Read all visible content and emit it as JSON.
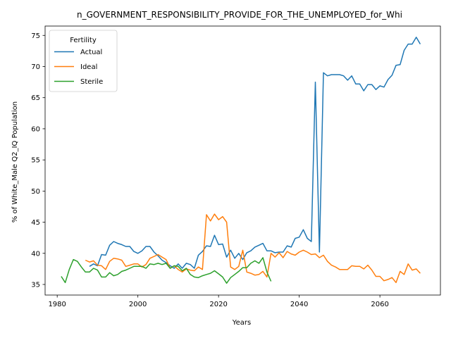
{
  "chart_data": {
    "type": "line",
    "title": "n_GOVERNMENT_RESPONSIBILITY_PROVIDE_FOR_THE_UNEMPLOYED_for_Whi",
    "xlabel": "Years",
    "ylabel": "% of White_Male Q2_IQ Population",
    "xlim": [
      1977,
      2075
    ],
    "ylim": [
      33.3,
      76.5
    ],
    "xticks": [
      1980,
      2000,
      2020,
      2040,
      2060
    ],
    "yticks": [
      35,
      40,
      45,
      50,
      55,
      60,
      65,
      70,
      75
    ],
    "grid": false,
    "legend": {
      "title": "Fertility",
      "placement": "upper-left"
    },
    "series": [
      {
        "name": "Actual",
        "color": "#1f77b4",
        "points": [
          [
            1988,
            37.9
          ],
          [
            1989,
            38.3
          ],
          [
            1990,
            38.0
          ],
          [
            1991,
            39.8
          ],
          [
            1992,
            39.7
          ],
          [
            1993,
            41.3
          ],
          [
            1994,
            41.9
          ],
          [
            1995,
            41.6
          ],
          [
            1996,
            41.4
          ],
          [
            1997,
            41.1
          ],
          [
            1998,
            41.1
          ],
          [
            1999,
            40.3
          ],
          [
            2000,
            40.0
          ],
          [
            2001,
            40.4
          ],
          [
            2002,
            41.1
          ],
          [
            2003,
            41.1
          ],
          [
            2004,
            40.2
          ],
          [
            2005,
            39.6
          ],
          [
            2006,
            38.9
          ],
          [
            2007,
            38.5
          ],
          [
            2008,
            38.0
          ],
          [
            2009,
            37.6
          ],
          [
            2010,
            38.3
          ],
          [
            2011,
            37.6
          ],
          [
            2012,
            38.4
          ],
          [
            2013,
            38.2
          ],
          [
            2014,
            37.6
          ],
          [
            2015,
            39.7
          ],
          [
            2016,
            40.3
          ],
          [
            2017,
            41.2
          ],
          [
            2018,
            41.1
          ],
          [
            2019,
            42.9
          ],
          [
            2020,
            41.4
          ],
          [
            2021,
            41.5
          ],
          [
            2022,
            39.4
          ],
          [
            2023,
            40.5
          ],
          [
            2024,
            39.2
          ],
          [
            2025,
            40.0
          ],
          [
            2026,
            39.0
          ],
          [
            2027,
            40.1
          ],
          [
            2028,
            40.4
          ],
          [
            2029,
            41.0
          ],
          [
            2030,
            41.3
          ],
          [
            2031,
            41.6
          ],
          [
            2032,
            40.4
          ],
          [
            2033,
            40.4
          ],
          [
            2034,
            40.1
          ],
          [
            2035,
            40.2
          ],
          [
            2036,
            40.2
          ],
          [
            2037,
            41.2
          ],
          [
            2038,
            41.0
          ],
          [
            2039,
            42.4
          ],
          [
            2040,
            42.6
          ],
          [
            2041,
            43.8
          ],
          [
            2042,
            42.4
          ],
          [
            2043,
            41.9
          ],
          [
            2044,
            67.5
          ],
          [
            2045,
            40.2
          ],
          [
            2046,
            69.0
          ],
          [
            2047,
            68.5
          ],
          [
            2048,
            68.7
          ],
          [
            2049,
            68.7
          ],
          [
            2050,
            68.7
          ],
          [
            2051,
            68.5
          ],
          [
            2052,
            67.8
          ],
          [
            2053,
            68.5
          ],
          [
            2054,
            67.2
          ],
          [
            2055,
            67.2
          ],
          [
            2056,
            66.1
          ],
          [
            2057,
            67.1
          ],
          [
            2058,
            67.1
          ],
          [
            2059,
            66.3
          ],
          [
            2060,
            66.9
          ],
          [
            2061,
            66.7
          ],
          [
            2062,
            67.9
          ],
          [
            2063,
            68.6
          ],
          [
            2064,
            70.2
          ],
          [
            2065,
            70.3
          ],
          [
            2066,
            72.6
          ],
          [
            2067,
            73.6
          ],
          [
            2068,
            73.6
          ],
          [
            2069,
            74.7
          ],
          [
            2070,
            73.6
          ]
        ]
      },
      {
        "name": "Ideal",
        "color": "#ff7f0e",
        "points": [
          [
            1987,
            38.9
          ],
          [
            1988,
            38.6
          ],
          [
            1989,
            38.8
          ],
          [
            1990,
            38.1
          ],
          [
            1991,
            38.0
          ],
          [
            1992,
            37.4
          ],
          [
            1993,
            38.7
          ],
          [
            1994,
            39.2
          ],
          [
            1995,
            39.1
          ],
          [
            1996,
            38.9
          ],
          [
            1997,
            37.9
          ],
          [
            1998,
            38.1
          ],
          [
            1999,
            38.3
          ],
          [
            2000,
            38.3
          ],
          [
            2001,
            37.8
          ],
          [
            2002,
            38.2
          ],
          [
            2003,
            39.2
          ],
          [
            2004,
            39.5
          ],
          [
            2005,
            39.8
          ],
          [
            2006,
            39.4
          ],
          [
            2007,
            39.0
          ],
          [
            2008,
            37.6
          ],
          [
            2009,
            38.0
          ],
          [
            2010,
            37.4
          ],
          [
            2011,
            37.0
          ],
          [
            2012,
            37.5
          ],
          [
            2013,
            37.3
          ],
          [
            2014,
            37.2
          ],
          [
            2015,
            37.8
          ],
          [
            2016,
            37.4
          ],
          [
            2017,
            46.2
          ],
          [
            2018,
            45.2
          ],
          [
            2019,
            46.3
          ],
          [
            2020,
            45.4
          ],
          [
            2021,
            45.9
          ],
          [
            2022,
            45.0
          ],
          [
            2023,
            37.8
          ],
          [
            2024,
            37.4
          ],
          [
            2025,
            37.9
          ],
          [
            2026,
            40.5
          ],
          [
            2027,
            37.0
          ],
          [
            2028,
            36.8
          ],
          [
            2029,
            36.5
          ],
          [
            2030,
            36.6
          ],
          [
            2031,
            37.1
          ],
          [
            2032,
            36.2
          ],
          [
            2033,
            40.0
          ],
          [
            2034,
            39.4
          ],
          [
            2035,
            40.1
          ],
          [
            2036,
            39.3
          ],
          [
            2037,
            40.3
          ],
          [
            2038,
            39.9
          ],
          [
            2039,
            39.7
          ],
          [
            2040,
            40.2
          ],
          [
            2041,
            40.5
          ],
          [
            2042,
            40.2
          ],
          [
            2043,
            39.8
          ],
          [
            2044,
            39.9
          ],
          [
            2045,
            39.3
          ],
          [
            2046,
            39.7
          ],
          [
            2047,
            38.7
          ],
          [
            2048,
            38.1
          ],
          [
            2049,
            37.8
          ],
          [
            2050,
            37.4
          ],
          [
            2051,
            37.4
          ],
          [
            2052,
            37.4
          ],
          [
            2053,
            38.0
          ],
          [
            2054,
            37.9
          ],
          [
            2055,
            37.9
          ],
          [
            2056,
            37.5
          ],
          [
            2057,
            38.1
          ],
          [
            2058,
            37.3
          ],
          [
            2059,
            36.3
          ],
          [
            2060,
            36.3
          ],
          [
            2061,
            35.6
          ],
          [
            2062,
            35.8
          ],
          [
            2063,
            36.1
          ],
          [
            2064,
            35.3
          ],
          [
            2065,
            37.1
          ],
          [
            2066,
            36.6
          ],
          [
            2067,
            38.3
          ],
          [
            2068,
            37.3
          ],
          [
            2069,
            37.5
          ],
          [
            2070,
            36.8
          ]
        ]
      },
      {
        "name": "Sterile",
        "color": "#2ca02c",
        "points": [
          [
            1981,
            36.3
          ],
          [
            1982,
            35.3
          ],
          [
            1983,
            37.4
          ],
          [
            1984,
            39.0
          ],
          [
            1985,
            38.7
          ],
          [
            1986,
            37.8
          ],
          [
            1987,
            37.0
          ],
          [
            1988,
            37.0
          ],
          [
            1989,
            37.6
          ],
          [
            1990,
            37.3
          ],
          [
            1991,
            36.2
          ],
          [
            1992,
            36.2
          ],
          [
            1993,
            36.9
          ],
          [
            1994,
            36.4
          ],
          [
            1995,
            36.6
          ],
          [
            1996,
            37.1
          ],
          [
            1997,
            37.3
          ],
          [
            1998,
            37.6
          ],
          [
            1999,
            37.9
          ],
          [
            2000,
            37.9
          ],
          [
            2001,
            37.9
          ],
          [
            2002,
            37.6
          ],
          [
            2003,
            38.3
          ],
          [
            2004,
            38.2
          ],
          [
            2005,
            38.4
          ],
          [
            2006,
            38.2
          ],
          [
            2007,
            38.4
          ],
          [
            2008,
            37.6
          ],
          [
            2009,
            38.0
          ],
          [
            2010,
            37.9
          ],
          [
            2011,
            37.2
          ],
          [
            2012,
            37.6
          ],
          [
            2013,
            36.6
          ],
          [
            2014,
            36.2
          ],
          [
            2015,
            36.1
          ],
          [
            2016,
            36.4
          ],
          [
            2017,
            36.6
          ],
          [
            2018,
            36.8
          ],
          [
            2019,
            37.2
          ],
          [
            2020,
            36.7
          ],
          [
            2021,
            36.2
          ],
          [
            2022,
            35.2
          ],
          [
            2023,
            36.1
          ],
          [
            2024,
            36.6
          ],
          [
            2025,
            37.1
          ],
          [
            2026,
            37.7
          ],
          [
            2027,
            37.7
          ],
          [
            2028,
            38.4
          ],
          [
            2029,
            38.8
          ],
          [
            2030,
            38.4
          ],
          [
            2031,
            39.3
          ],
          [
            2032,
            37.0
          ],
          [
            2033,
            35.5
          ]
        ]
      }
    ]
  }
}
